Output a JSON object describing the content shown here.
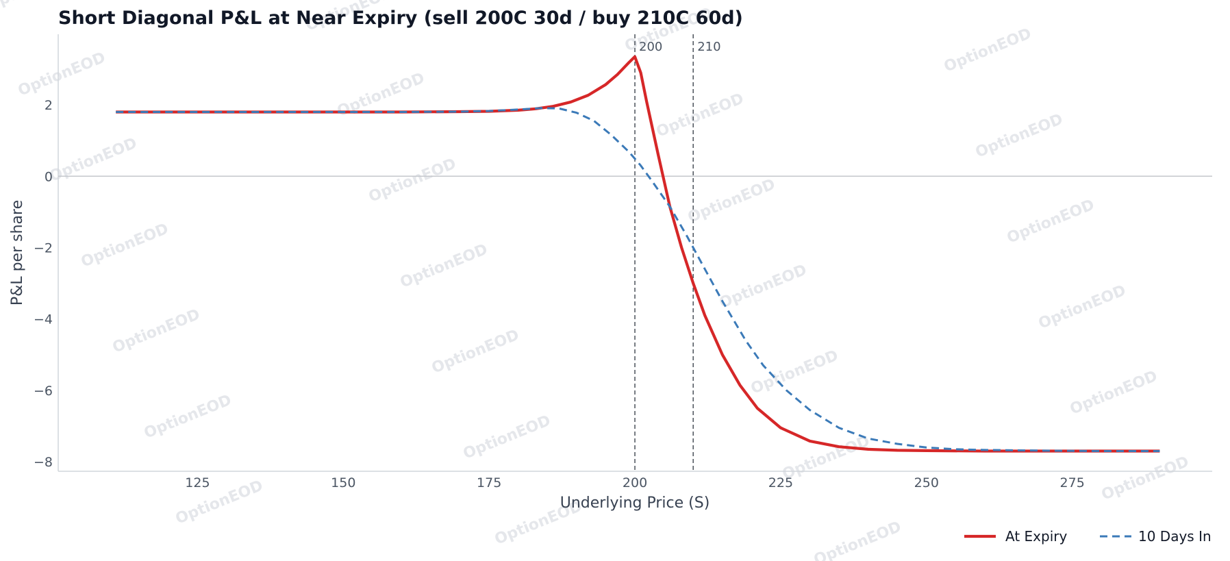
{
  "chart_data": {
    "type": "line",
    "title": "Short Diagonal P&L at Near Expiry (sell 200C 30d / buy 210C 60d)",
    "xlabel": "Underlying Price (S)",
    "ylabel": "P&L per share",
    "xlim": [
      110,
      290
    ],
    "ylim": [
      -8.25,
      3.9
    ],
    "xticks": [
      125,
      150,
      175,
      200,
      225,
      250,
      275
    ],
    "yticks": [
      2,
      0,
      -2,
      -4,
      -6,
      -8
    ],
    "ytick_labels": [
      "2",
      "0",
      "−2",
      "−4",
      "−6",
      "−8"
    ],
    "zero_line": 0,
    "strike_lines": [
      {
        "x": 200,
        "label": "200"
      },
      {
        "x": 210,
        "label": "210"
      }
    ],
    "grid": false,
    "legend": "bottom-right",
    "series": [
      {
        "name": "At Expiry",
        "color": "#d62728",
        "style": "solid",
        "x": [
          111,
          120,
          130,
          140,
          150,
          160,
          170,
          175,
          180,
          183,
          186,
          189,
          192,
          195,
          197,
          199,
          200,
          201,
          202,
          204,
          206,
          208,
          210,
          212,
          215,
          218,
          221,
          225,
          230,
          235,
          240,
          245,
          250,
          260,
          270,
          280,
          290
        ],
        "y": [
          1.8,
          1.8,
          1.8,
          1.8,
          1.8,
          1.8,
          1.81,
          1.82,
          1.85,
          1.89,
          1.96,
          2.08,
          2.27,
          2.57,
          2.85,
          3.19,
          3.35,
          2.9,
          2.1,
          0.6,
          -0.85,
          -2.0,
          -3.0,
          -3.9,
          -5.0,
          -5.85,
          -6.5,
          -7.05,
          -7.42,
          -7.58,
          -7.65,
          -7.68,
          -7.69,
          -7.7,
          -7.7,
          -7.7,
          -7.7
        ]
      },
      {
        "name": "10 Days In",
        "color": "#3b7ab8",
        "style": "dashed",
        "x": [
          111,
          120,
          130,
          140,
          150,
          160,
          170,
          175,
          180,
          184,
          187,
          190,
          193,
          196,
          199,
          201,
          203,
          206,
          209,
          212,
          215,
          219,
          222,
          226,
          230,
          235,
          240,
          245,
          250,
          255,
          260,
          270,
          280,
          290
        ],
        "y": [
          1.8,
          1.8,
          1.8,
          1.8,
          1.8,
          1.8,
          1.81,
          1.83,
          1.87,
          1.91,
          1.9,
          1.78,
          1.55,
          1.15,
          0.68,
          0.3,
          -0.15,
          -0.85,
          -1.7,
          -2.6,
          -3.5,
          -4.6,
          -5.3,
          -6.0,
          -6.55,
          -7.05,
          -7.35,
          -7.5,
          -7.6,
          -7.65,
          -7.67,
          -7.69,
          -7.7,
          -7.7
        ]
      }
    ],
    "watermark": "OptionEOD"
  }
}
